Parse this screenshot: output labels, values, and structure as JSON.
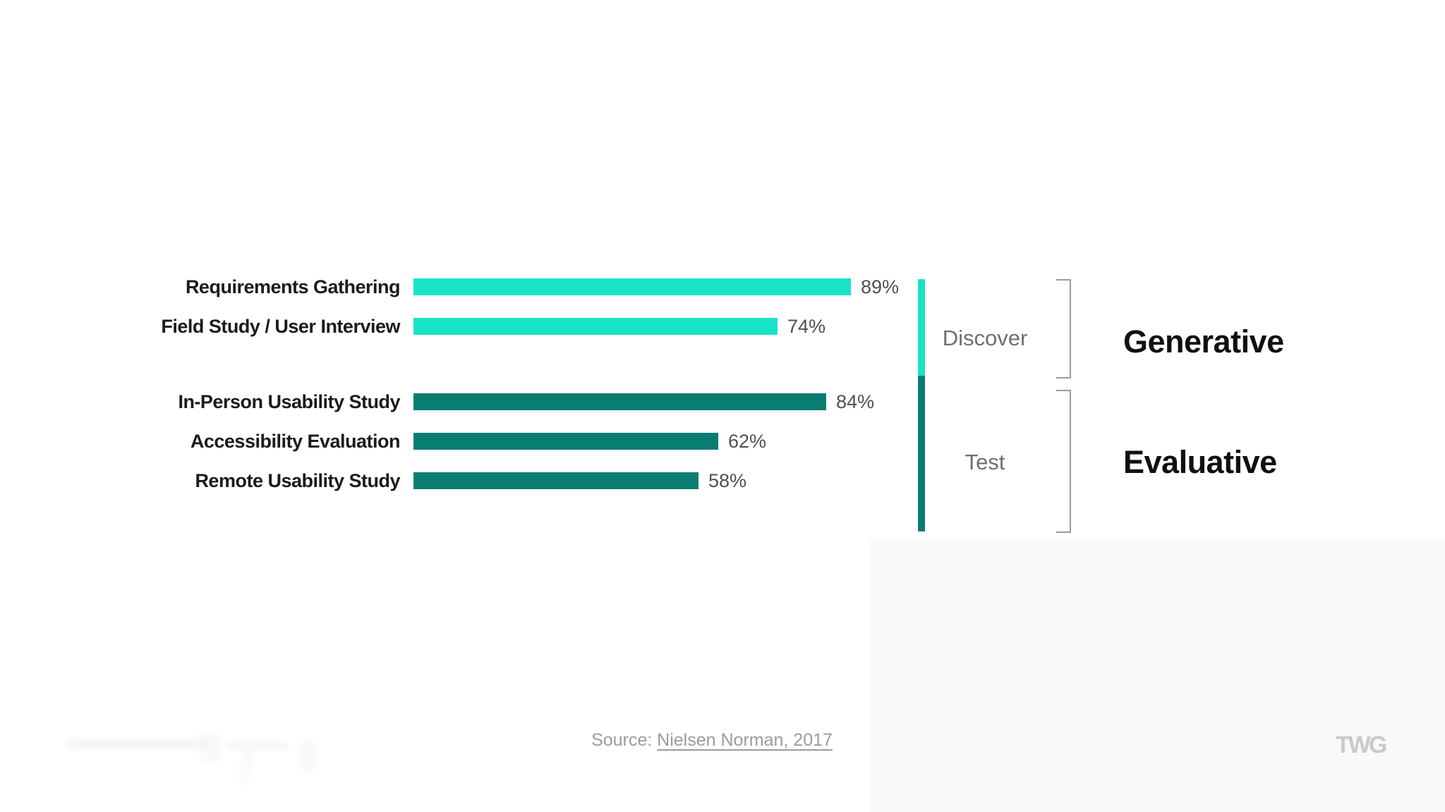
{
  "slide": {
    "background_color": "#ffffff",
    "panel_color": "#f8f9f9"
  },
  "chart_data": {
    "type": "bar",
    "orientation": "horizontal",
    "title": "",
    "xlabel": "",
    "ylabel": "",
    "unit": "%",
    "xlim": [
      0,
      100
    ],
    "grid": false,
    "legend_position": "none",
    "categories": [
      "Requirements Gathering",
      "Field Study / User Interview",
      "In-Person Usability Study",
      "Accessibility Evaluation",
      "Remote Usability Study"
    ],
    "values": [
      89,
      74,
      84,
      62,
      58
    ],
    "value_labels": [
      "89%",
      "74%",
      "84%",
      "62%",
      "58%"
    ],
    "groups": [
      {
        "label": "Discover",
        "annotation": "Generative",
        "color": "#19E3C6",
        "categories": [
          "Requirements Gathering",
          "Field Study / User Interview"
        ]
      },
      {
        "label": "Test",
        "annotation": "Evaluative",
        "color": "#0A7D73",
        "categories": [
          "In-Person Usability Study",
          "Accessibility Evaluation",
          "Remote Usability Study"
        ]
      }
    ]
  },
  "footer": {
    "source_prefix": "Source: ",
    "source_link": "Nielsen Norman, 2017",
    "logo": "TWG"
  }
}
